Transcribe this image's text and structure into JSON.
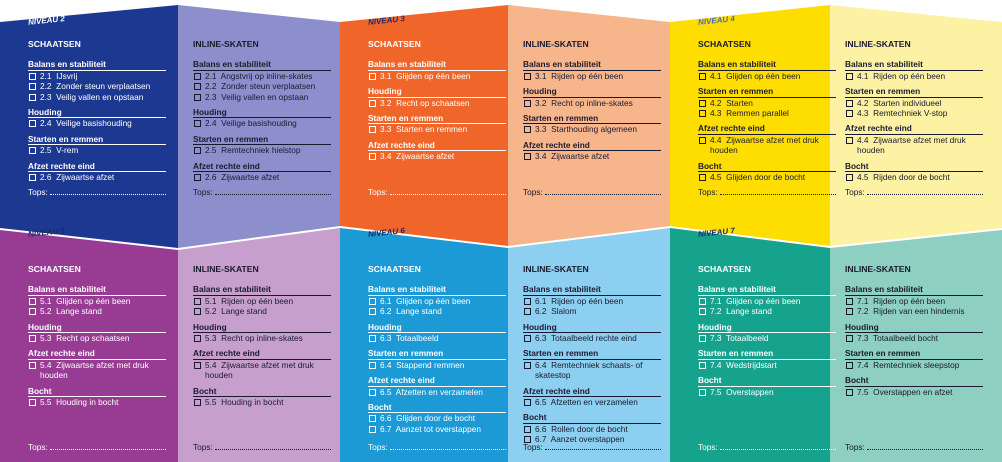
{
  "levels": [
    {
      "label": "NIVEAU 2",
      "columns": [
        {
          "heading": "SCHAATSEN",
          "sections": [
            {
              "title": "Balans en stabiliteit",
              "items": [
                "2.1  IJsvrij",
                "2.2  Zonder steun verplaatsen",
                "2.3  Veilig vallen en opstaan"
              ]
            },
            {
              "title": "Houding",
              "items": [
                "2.4  Veilige basishouding"
              ]
            },
            {
              "title": "Starten en remmen",
              "items": [
                "2.5  V-rem"
              ]
            },
            {
              "title": "Afzet rechte eind",
              "items": [
                "2.6  Zijwaartse afzet"
              ]
            }
          ],
          "tops": "Tops:"
        },
        {
          "heading": "INLINE-SKATEN",
          "sections": [
            {
              "title": "Balans en stabiliteit",
              "items": [
                "2.1  Angstvrij op inline-skates",
                "2.2  Zonder steun verplaatsen",
                "2.3  Veilig vallen en opstaan"
              ]
            },
            {
              "title": "Houding",
              "items": [
                "2.4  Veilige basishouding"
              ]
            },
            {
              "title": "Starten en remmen",
              "items": [
                "2.5  Remtechniek hielstop"
              ]
            },
            {
              "title": "Afzet rechte eind",
              "items": [
                "2.6  Zijwaartse afzet"
              ]
            }
          ],
          "tops": "Tops:"
        }
      ]
    },
    {
      "label": "NIVEAU 3",
      "columns": [
        {
          "heading": "SCHAATSEN",
          "sections": [
            {
              "title": "Balans en stabiliteit",
              "items": [
                "3.1  Glijden op één been"
              ]
            },
            {
              "title": "Houding",
              "items": [
                "3.2  Recht op schaatsen"
              ]
            },
            {
              "title": "Starten en remmen",
              "items": [
                "3.3  Starten en remmen"
              ]
            },
            {
              "title": "Afzet rechte eind",
              "items": [
                "3.4  Zijwaartse afzet"
              ]
            }
          ],
          "tops": "Tops:"
        },
        {
          "heading": "INLINE-SKATEN",
          "sections": [
            {
              "title": "Balans en stabiliteit",
              "items": [
                "3.1  Rijden op één been"
              ]
            },
            {
              "title": "Houding",
              "items": [
                "3.2  Recht op inline-skates"
              ]
            },
            {
              "title": "Starten en remmen",
              "items": [
                "3.3  Starthouding algemeen"
              ]
            },
            {
              "title": "Afzet rechte eind",
              "items": [
                "3.4  Zijwaartse afzet"
              ]
            }
          ],
          "tops": "Tops:"
        }
      ]
    },
    {
      "label": "NIVEAU 4",
      "columns": [
        {
          "heading": "SCHAATSEN",
          "sections": [
            {
              "title": "Balans en stabiliteit",
              "items": [
                "4.1  Glijden op één been"
              ]
            },
            {
              "title": "Starten en remmen",
              "items": [
                "4.2  Starten",
                "4.3  Remmen parallel"
              ]
            },
            {
              "title": "Afzet rechte eind",
              "items": [
                "4.4  Zijwaartse afzet met druk houden"
              ]
            },
            {
              "title": "Bocht",
              "items": [
                "4.5  Glijden door de bocht"
              ]
            }
          ],
          "tops": "Tops:"
        },
        {
          "heading": "INLINE-SKATEN",
          "sections": [
            {
              "title": "Balans en stabiliteit",
              "items": [
                "4.1  Rijden op één been"
              ]
            },
            {
              "title": "Starten en remmen",
              "items": [
                "4.2  Starten individueel",
                "4.3  Remtechniek V-stop"
              ]
            },
            {
              "title": "Afzet rechte eind",
              "items": [
                "4.4  Zijwaartse afzet met druk houden"
              ]
            },
            {
              "title": "Bocht",
              "items": [
                "4.5  Rijden door de bocht"
              ]
            }
          ],
          "tops": "Tops:"
        }
      ]
    },
    {
      "label": "NIVEAU 5",
      "columns": [
        {
          "heading": "SCHAATSEN",
          "sections": [
            {
              "title": "Balans en stabiliteit",
              "items": [
                "5.1  Glijden op één been",
                "5.2  Lange stand"
              ]
            },
            {
              "title": "Houding",
              "items": [
                "5.3  Recht op schaatsen"
              ]
            },
            {
              "title": "Afzet rechte eind",
              "items": [
                "5.4  Zijwaartse afzet met druk houden"
              ]
            },
            {
              "title": "Bocht",
              "items": [
                "5.5  Houding in bocht"
              ]
            }
          ],
          "tops": "Tops:"
        },
        {
          "heading": "INLINE-SKATEN",
          "sections": [
            {
              "title": "Balans en stabiliteit",
              "items": [
                "5.1  Rijden op één been",
                "5.2  Lange stand"
              ]
            },
            {
              "title": "Houding",
              "items": [
                "5.3  Recht op inline-skates"
              ]
            },
            {
              "title": "Afzet rechte eind",
              "items": [
                "5.4  Zijwaartse afzet met druk houden"
              ]
            },
            {
              "title": "Bocht",
              "items": [
                "5.5  Houding in bocht"
              ]
            }
          ],
          "tops": "Tops:"
        }
      ]
    },
    {
      "label": "NIVEAU 6",
      "columns": [
        {
          "heading": "SCHAATSEN",
          "sections": [
            {
              "title": "Balans en stabiliteit",
              "items": [
                "6.1  Glijden op één been",
                "6.2  Lange stand"
              ]
            },
            {
              "title": "Houding",
              "items": [
                "6.3  Totaalbeeld"
              ]
            },
            {
              "title": "Starten en remmen",
              "items": [
                "6.4  Stappend remmen"
              ]
            },
            {
              "title": "Afzet rechte eind",
              "items": [
                "6.5  Afzetten en verzamelen"
              ]
            },
            {
              "title": "Bocht",
              "items": [
                "6.6  Glijden door de bocht",
                "6.7  Aanzet tot overstappen"
              ]
            }
          ],
          "tops": "Tops:"
        },
        {
          "heading": "INLINE-SKATEN",
          "sections": [
            {
              "title": "Balans en stabiliteit",
              "items": [
                "6.1  Rijden op één been",
                "6.2  Slalom"
              ]
            },
            {
              "title": "Houding",
              "items": [
                "6.3  Totaalbeeld rechte eind"
              ]
            },
            {
              "title": "Starten en remmen",
              "items": [
                "6.4  Remtechniek schaats- of skatestop"
              ]
            },
            {
              "title": "Afzet rechte eind",
              "items": [
                "6.5  Afzetten en verzamelen"
              ]
            },
            {
              "title": "Bocht",
              "items": [
                "6.6  Rollen door de bocht",
                "6.7  Aanzet overstappen"
              ]
            }
          ],
          "tops": "Tops:"
        }
      ]
    },
    {
      "label": "NIVEAU 7",
      "columns": [
        {
          "heading": "SCHAATSEN",
          "sections": [
            {
              "title": "Balans en stabiliteit",
              "items": [
                "7.1  Glijden op één been",
                "7.2  Lange stand"
              ]
            },
            {
              "title": "Houding",
              "items": [
                "7.3  Totaalbeeld"
              ]
            },
            {
              "title": "Starten en remmen",
              "items": [
                "7.4  Wedstrijdstart"
              ]
            },
            {
              "title": "Bocht",
              "items": [
                "7.5  Overstappen"
              ]
            }
          ],
          "tops": "Tops:"
        },
        {
          "heading": "INLINE-SKATEN",
          "sections": [
            {
              "title": "Balans en stabiliteit",
              "items": [
                "7.1  Rijden op één been",
                "7.2  Rijden van een hindernis"
              ]
            },
            {
              "title": "Houding",
              "items": [
                "7.3  Totaalbeeld bocht"
              ]
            },
            {
              "title": "Starten en remmen",
              "items": [
                "7.4  Remtechniek sleepstop"
              ]
            },
            {
              "title": "Bocht",
              "items": [
                "7.5  Overstappen en afzet"
              ]
            }
          ],
          "tops": "Tops:"
        }
      ]
    }
  ]
}
